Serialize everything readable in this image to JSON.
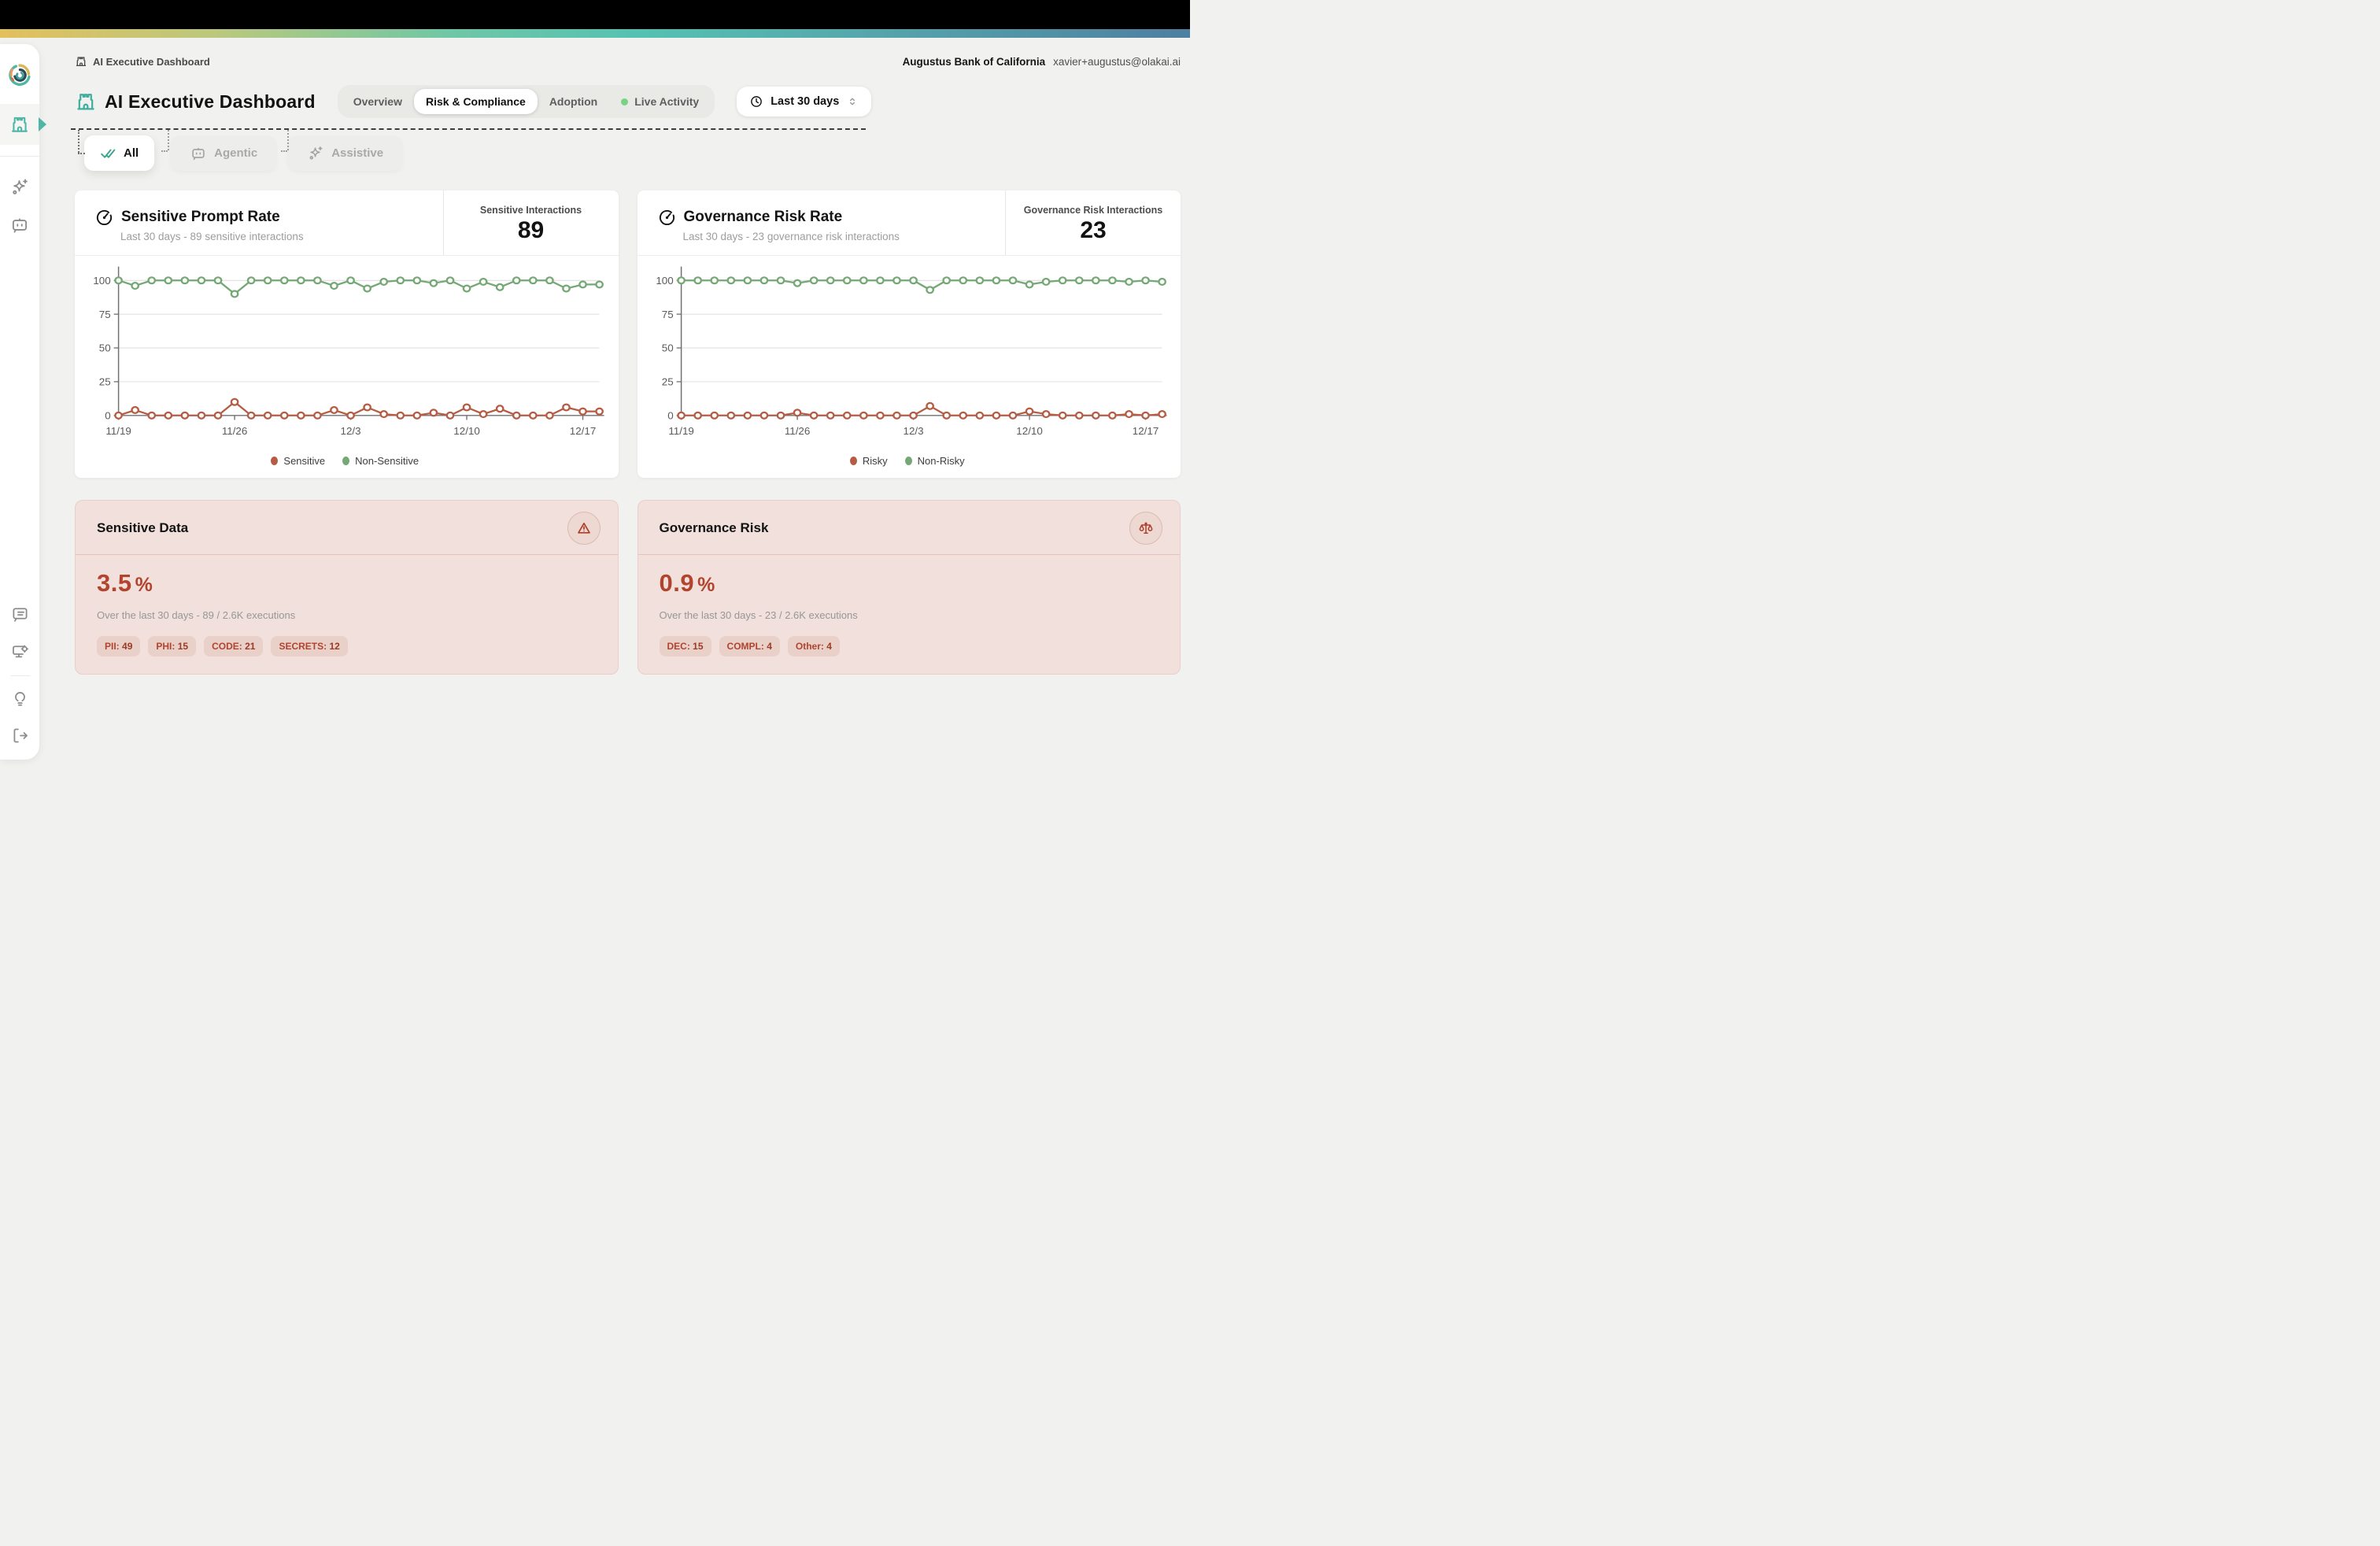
{
  "topbar": {
    "breadcrumb": "AI Executive Dashboard",
    "org_name": "Augustus Bank of California",
    "user_email": "xavier+augustus@olakai.ai"
  },
  "header": {
    "title": "AI Executive Dashboard",
    "tabs": [
      {
        "label": "Overview",
        "active": false,
        "live_dot": false
      },
      {
        "label": "Risk & Compliance",
        "active": true,
        "live_dot": false
      },
      {
        "label": "Adoption",
        "active": false,
        "live_dot": false
      },
      {
        "label": "Live Activity",
        "active": false,
        "live_dot": true
      }
    ],
    "time_range_label": "Last 30 days"
  },
  "filter_chips": {
    "all": "All",
    "agentic": "Agentic",
    "assistive": "Assistive"
  },
  "metric_cards": [
    {
      "title": "Sensitive Prompt Rate",
      "subtitle": "Last 30 days - 89 sensitive interactions",
      "stat_label": "Sensitive Interactions",
      "stat_value": "89"
    },
    {
      "title": "Governance Risk Rate",
      "subtitle": "Last 30 days - 23 governance risk interactions",
      "stat_label": "Governance Risk Interactions",
      "stat_value": "23"
    }
  ],
  "chart_data": [
    {
      "type": "line",
      "title": "Sensitive Prompt Rate",
      "categories": [
        "11/19",
        "11/20",
        "11/21",
        "11/22",
        "11/23",
        "11/24",
        "11/25",
        "11/26",
        "11/27",
        "11/28",
        "11/29",
        "11/30",
        "12/1",
        "12/2",
        "12/3",
        "12/4",
        "12/5",
        "12/6",
        "12/7",
        "12/8",
        "12/9",
        "12/10",
        "12/11",
        "12/12",
        "12/13",
        "12/14",
        "12/15",
        "12/16",
        "12/17",
        "12/18"
      ],
      "tick_labels": {
        "0": "11/19",
        "7": "11/26",
        "14": "12/3",
        "21": "12/10",
        "28": "12/17"
      },
      "series": [
        {
          "name": "Sensitive",
          "color": "#b65c44",
          "values": [
            0,
            4,
            0,
            0,
            0,
            0,
            0,
            10,
            0,
            0,
            0,
            0,
            0,
            4,
            0,
            6,
            1,
            0,
            0,
            2,
            0,
            6,
            1,
            5,
            0,
            0,
            0,
            6,
            3,
            3
          ]
        },
        {
          "name": "Non-Sensitive",
          "color": "#74a874",
          "values": [
            100,
            96,
            100,
            100,
            100,
            100,
            100,
            90,
            100,
            100,
            100,
            100,
            100,
            96,
            100,
            94,
            99,
            100,
            100,
            98,
            100,
            94,
            99,
            95,
            100,
            100,
            100,
            94,
            97,
            97
          ]
        }
      ],
      "ylim": [
        0,
        107
      ],
      "yticks": [
        0,
        25,
        50,
        75,
        100
      ],
      "grid": true,
      "legend_position": "bottom"
    },
    {
      "type": "line",
      "title": "Governance Risk Rate",
      "categories": [
        "11/19",
        "11/20",
        "11/21",
        "11/22",
        "11/23",
        "11/24",
        "11/25",
        "11/26",
        "11/27",
        "11/28",
        "11/29",
        "11/30",
        "12/1",
        "12/2",
        "12/3",
        "12/4",
        "12/5",
        "12/6",
        "12/7",
        "12/8",
        "12/9",
        "12/10",
        "12/11",
        "12/12",
        "12/13",
        "12/14",
        "12/15",
        "12/16",
        "12/17",
        "12/18"
      ],
      "tick_labels": {
        "0": "11/19",
        "7": "11/26",
        "14": "12/3",
        "21": "12/10",
        "28": "12/17"
      },
      "series": [
        {
          "name": "Risky",
          "color": "#b65c44",
          "values": [
            0,
            0,
            0,
            0,
            0,
            0,
            0,
            2,
            0,
            0,
            0,
            0,
            0,
            0,
            0,
            7,
            0,
            0,
            0,
            0,
            0,
            3,
            1,
            0,
            0,
            0,
            0,
            1,
            0,
            1
          ]
        },
        {
          "name": "Non-Risky",
          "color": "#74a874",
          "values": [
            100,
            100,
            100,
            100,
            100,
            100,
            100,
            98,
            100,
            100,
            100,
            100,
            100,
            100,
            100,
            93,
            100,
            100,
            100,
            100,
            100,
            97,
            99,
            100,
            100,
            100,
            100,
            99,
            100,
            99
          ]
        }
      ],
      "ylim": [
        0,
        107
      ],
      "yticks": [
        0,
        25,
        50,
        75,
        100
      ],
      "grid": true,
      "legend_position": "bottom"
    }
  ],
  "alert_cards": [
    {
      "title": "Sensitive Data",
      "icon": "warning-triangle-icon",
      "percent": "3.5",
      "percent_unit": "%",
      "subtitle": "Over the last 30 days - 89 / 2.6K executions",
      "badges": [
        {
          "label": "PII",
          "value": "49"
        },
        {
          "label": "PHI",
          "value": "15"
        },
        {
          "label": "CODE",
          "value": "21"
        },
        {
          "label": "SECRETS",
          "value": "12"
        }
      ]
    },
    {
      "title": "Governance Risk",
      "icon": "scales-icon",
      "percent": "0.9",
      "percent_unit": "%",
      "subtitle": "Over the last 30 days - 23 / 2.6K executions",
      "badges": [
        {
          "label": "DEC",
          "value": "15"
        },
        {
          "label": "COMPL",
          "value": "4"
        },
        {
          "label": "Other",
          "value": "4"
        }
      ]
    }
  ],
  "colors": {
    "accent_teal": "#4db6a5",
    "chart_red": "#b65c44",
    "chart_green": "#74a874",
    "alert_red": "#b2432e",
    "alert_bg": "#f1e0db",
    "live_green": "#79d387"
  }
}
